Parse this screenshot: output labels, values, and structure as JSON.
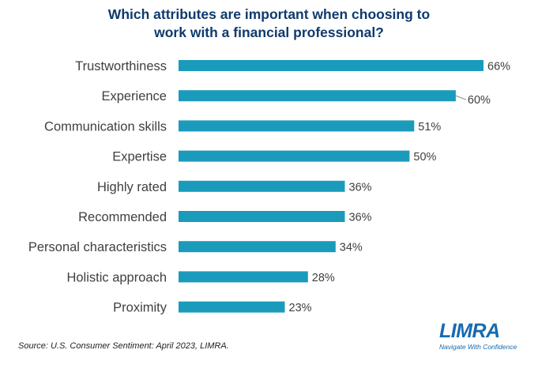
{
  "chart_data": {
    "type": "bar",
    "orientation": "horizontal",
    "title": [
      "Which attributes are important when choosing to",
      "work with a financial professional?"
    ],
    "categories": [
      "Trustworthiness",
      "Experience",
      "Communication skills",
      "Expertise",
      "Highly rated",
      "Recommended",
      "Personal characteristics",
      "Holistic approach",
      "Proximity"
    ],
    "values": [
      66,
      60,
      51,
      50,
      36,
      36,
      34,
      28,
      23
    ],
    "value_labels": [
      "66%",
      "60%",
      "51%",
      "50%",
      "36%",
      "36%",
      "34%",
      "28%",
      "23%"
    ],
    "unit": "%",
    "xlim": [
      0,
      66
    ],
    "bar_color": "#1a9bbc",
    "grid": false,
    "legend": "none"
  },
  "footer": {
    "source": "Source: U.S. Consumer Sentiment: April 2023, LIMRA."
  },
  "logo": {
    "name": "LIMRA",
    "tagline": "Navigate With Confidence",
    "color": "#1769b0"
  }
}
